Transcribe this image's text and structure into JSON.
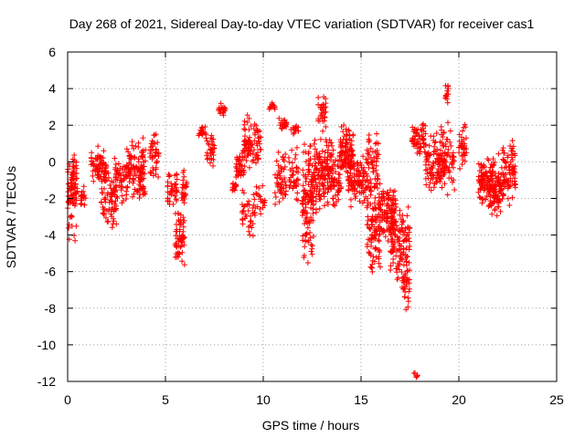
{
  "chart_data": {
    "type": "scatter",
    "title": "Day 268 of 2021, Sidereal Day-to-day VTEC variation (SDTVAR) for receiver cas1",
    "xlabel": "GPS time / hours",
    "ylabel": "SDTVAR / TECUs",
    "xlim": [
      0,
      25
    ],
    "ylim": [
      -12,
      6
    ],
    "xticks": [
      "0",
      "5",
      "10",
      "15",
      "20",
      "25"
    ],
    "yticks": [
      "6",
      "4",
      "2",
      "0",
      "-2",
      "-4",
      "-6",
      "-8",
      "-10",
      "-12"
    ],
    "grid": true,
    "marker": "plus",
    "series": [
      {
        "name": "SDTVAR",
        "color": "#ff0000",
        "clusters": [
          {
            "x": [
              0.0,
              0.45
            ],
            "y": [
              -4.6,
              0.5
            ],
            "n": 60
          },
          {
            "x": [
              0.2,
              0.5
            ],
            "y": [
              -2.5,
              0.6
            ],
            "n": 30
          },
          {
            "x": [
              0.6,
              1.0
            ],
            "y": [
              -2.5,
              -1.2
            ],
            "n": 20
          },
          {
            "x": [
              1.2,
              2.0
            ],
            "y": [
              -1.5,
              0.9
            ],
            "n": 70
          },
          {
            "x": [
              1.7,
              2.5
            ],
            "y": [
              -3.8,
              -0.5
            ],
            "n": 70
          },
          {
            "x": [
              2.4,
              3.0
            ],
            "y": [
              -2.5,
              0.5
            ],
            "n": 50
          },
          {
            "x": [
              3.0,
              3.9
            ],
            "y": [
              -2.2,
              1.4
            ],
            "n": 90
          },
          {
            "x": [
              3.6,
              4.0
            ],
            "y": [
              -3.2,
              2.0
            ],
            "n": 30
          },
          {
            "x": [
              4.2,
              4.7
            ],
            "y": [
              -1.0,
              1.6
            ],
            "n": 40
          },
          {
            "x": [
              5.1,
              5.6
            ],
            "y": [
              -2.5,
              -0.4
            ],
            "n": 40
          },
          {
            "x": [
              5.5,
              6.0
            ],
            "y": [
              -6.0,
              -2.5
            ],
            "n": 60
          },
          {
            "x": [
              5.8,
              6.1
            ],
            "y": [
              -2.5,
              -0.2
            ],
            "n": 25
          },
          {
            "x": [
              6.7,
              7.1
            ],
            "y": [
              1.2,
              2.0
            ],
            "n": 20
          },
          {
            "x": [
              7.1,
              7.5
            ],
            "y": [
              -0.5,
              1.7
            ],
            "n": 30
          },
          {
            "x": [
              7.7,
              8.1
            ],
            "y": [
              2.5,
              3.2
            ],
            "n": 20
          },
          {
            "x": [
              8.4,
              8.7
            ],
            "y": [
              -1.7,
              -1.0
            ],
            "n": 15
          },
          {
            "x": [
              8.6,
              9.1
            ],
            "y": [
              -1.0,
              1.0
            ],
            "n": 40
          },
          {
            "x": [
              8.9,
              9.6
            ],
            "y": [
              -4.2,
              -1.4
            ],
            "n": 40
          },
          {
            "x": [
              9.0,
              9.9
            ],
            "y": [
              -0.5,
              2.7
            ],
            "n": 80
          },
          {
            "x": [
              9.6,
              10.1
            ],
            "y": [
              -3.0,
              -1.2
            ],
            "n": 20
          },
          {
            "x": [
              10.3,
              10.6
            ],
            "y": [
              2.8,
              3.3
            ],
            "n": 15
          },
          {
            "x": [
              10.6,
              11.2
            ],
            "y": [
              -2.5,
              0.7
            ],
            "n": 50
          },
          {
            "x": [
              10.8,
              11.2
            ],
            "y": [
              1.5,
              2.7
            ],
            "n": 20
          },
          {
            "x": [
              11.3,
              11.8
            ],
            "y": [
              -2.5,
              0.8
            ],
            "n": 40
          },
          {
            "x": [
              11.4,
              11.8
            ],
            "y": [
              1.5,
              2.0
            ],
            "n": 15
          },
          {
            "x": [
              12.0,
              12.6
            ],
            "y": [
              -6.0,
              1.7
            ],
            "n": 130
          },
          {
            "x": [
              12.6,
              13.3
            ],
            "y": [
              -3.0,
              1.5
            ],
            "n": 100
          },
          {
            "x": [
              12.8,
              13.2
            ],
            "y": [
              1.5,
              3.8
            ],
            "n": 30
          },
          {
            "x": [
              13.3,
              14.0
            ],
            "y": [
              -2.6,
              1.5
            ],
            "n": 90
          },
          {
            "x": [
              13.9,
              14.6
            ],
            "y": [
              -1.0,
              2.1
            ],
            "n": 90
          },
          {
            "x": [
              14.3,
              15.3
            ],
            "y": [
              -2.5,
              0.5
            ],
            "n": 100
          },
          {
            "x": [
              15.3,
              15.9
            ],
            "y": [
              -3.0,
              2.0
            ],
            "n": 70
          },
          {
            "x": [
              15.3,
              16.0
            ],
            "y": [
              -6.2,
              -2.0
            ],
            "n": 80
          },
          {
            "x": [
              15.9,
              16.8
            ],
            "y": [
              -4.5,
              -0.8
            ],
            "n": 110
          },
          {
            "x": [
              16.5,
              17.5
            ],
            "y": [
              -6.5,
              -2.0
            ],
            "n": 120
          },
          {
            "x": [
              17.1,
              17.5
            ],
            "y": [
              -8.2,
              -5.5
            ],
            "n": 35
          },
          {
            "x": [
              17.6,
              18.3
            ],
            "y": [
              0.2,
              2.2
            ],
            "n": 60
          },
          {
            "x": [
              17.7,
              17.9
            ],
            "y": [
              -11.9,
              -11.5
            ],
            "n": 6
          },
          {
            "x": [
              18.3,
              19.3
            ],
            "y": [
              -1.8,
              1.7
            ],
            "n": 110
          },
          {
            "x": [
              19.0,
              19.8
            ],
            "y": [
              -2.0,
              2.5
            ],
            "n": 60
          },
          {
            "x": [
              19.3,
              19.5
            ],
            "y": [
              3.0,
              4.5
            ],
            "n": 15
          },
          {
            "x": [
              20.0,
              20.4
            ],
            "y": [
              -0.5,
              2.5
            ],
            "n": 35
          },
          {
            "x": [
              21.0,
              21.9
            ],
            "y": [
              -2.5,
              0.5
            ],
            "n": 110
          },
          {
            "x": [
              21.5,
              22.2
            ],
            "y": [
              -3.0,
              -0.5
            ],
            "n": 60
          },
          {
            "x": [
              22.0,
              22.6
            ],
            "y": [
              -2.5,
              1.0
            ],
            "n": 60
          },
          {
            "x": [
              22.6,
              22.9
            ],
            "y": [
              -2.7,
              2.0
            ],
            "n": 35
          }
        ]
      }
    ]
  }
}
